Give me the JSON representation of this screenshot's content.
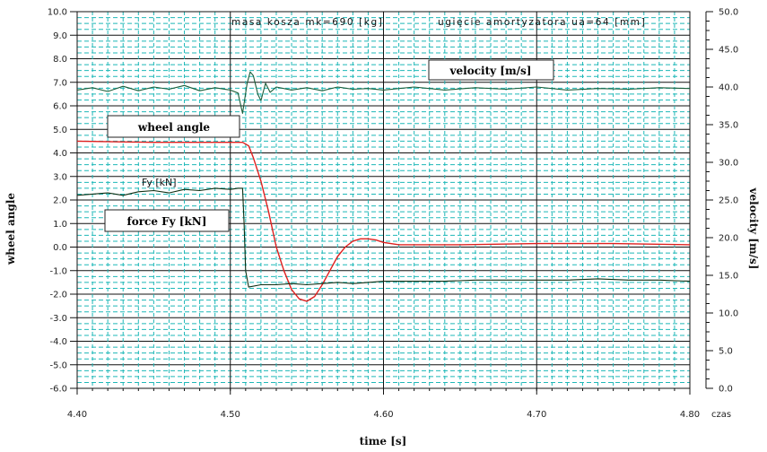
{
  "header": {
    "mass_text": "masa kosza   mk=690  [kg]",
    "spring_text": "ugięcie amortyzatora  ua=64  [mm]"
  },
  "chart_data": {
    "type": "line",
    "xlabel": "time [s]",
    "x_unit_label": "czas",
    "ylabel_left": "wheel angle",
    "ylabel_right": "velocity [m/s]",
    "xlim": [
      4.4,
      4.8
    ],
    "ylim_left": [
      -6.0,
      10.0
    ],
    "ylim_right": [
      0.0,
      50.0
    ],
    "x_ticks": [
      "4.40",
      "4.50",
      "4.60",
      "4.70",
      "4.80"
    ],
    "y_ticks_left": [
      "10.0",
      "9.0",
      "8.0",
      "7.0",
      "6.0",
      "5.0",
      "4.0",
      "3.0",
      "2.0",
      "1.0",
      "0.0",
      "-1.0",
      "-2.0",
      "-3.0",
      "-4.0",
      "-5.0",
      "-6.0"
    ],
    "y_ticks_right": [
      "50.0",
      "45.0",
      "40.0",
      "35.0",
      "30.0",
      "25.0",
      "20.0",
      "15.0",
      "10.0",
      "5.0",
      "0.0"
    ],
    "grid": true,
    "colors": {
      "wheel_angle": "#e0201f",
      "force": "#0e2e12",
      "velocity": "#1b5e3a",
      "grid": "#1fb8b8",
      "velocity_label": "#2e8b57"
    },
    "legend_labels": {
      "velocity": "velocity [m/s]",
      "wheel_angle": "wheel angle",
      "force": "force Fy [kN]",
      "force_annotation": "Fy  [kN]"
    },
    "series": [
      {
        "key": "wheel_angle",
        "axis": "left",
        "x": [
          4.4,
          4.45,
          4.5,
          4.508,
          4.512,
          4.515,
          4.52,
          4.525,
          4.53,
          4.535,
          4.54,
          4.545,
          4.55,
          4.555,
          4.56,
          4.565,
          4.57,
          4.575,
          4.58,
          4.585,
          4.59,
          4.595,
          4.6,
          4.61,
          4.62,
          4.65,
          4.7,
          4.75,
          4.8
        ],
        "y": [
          4.5,
          4.45,
          4.45,
          4.45,
          4.3,
          3.8,
          2.8,
          1.5,
          0.0,
          -1.0,
          -1.8,
          -2.2,
          -2.3,
          -2.1,
          -1.6,
          -1.0,
          -0.4,
          0.0,
          0.25,
          0.35,
          0.35,
          0.3,
          0.2,
          0.1,
          0.1,
          0.1,
          0.15,
          0.15,
          0.1
        ]
      },
      {
        "key": "force",
        "axis": "left",
        "x": [
          4.4,
          4.41,
          4.42,
          4.43,
          4.44,
          4.45,
          4.46,
          4.47,
          4.48,
          4.49,
          4.5,
          4.505,
          4.508,
          4.509,
          4.51,
          4.512,
          4.52,
          4.53,
          4.54,
          4.55,
          4.56,
          4.57,
          4.58,
          4.59,
          4.6,
          4.62,
          4.64,
          4.66,
          4.68,
          4.7,
          4.72,
          4.74,
          4.76,
          4.78,
          4.8
        ],
        "y": [
          2.2,
          2.25,
          2.3,
          2.2,
          2.35,
          2.4,
          2.3,
          2.45,
          2.4,
          2.5,
          2.45,
          2.5,
          2.5,
          1.0,
          -1.0,
          -1.7,
          -1.6,
          -1.6,
          -1.55,
          -1.6,
          -1.55,
          -1.5,
          -1.55,
          -1.5,
          -1.45,
          -1.45,
          -1.45,
          -1.4,
          -1.4,
          -1.4,
          -1.4,
          -1.35,
          -1.4,
          -1.4,
          -1.45
        ]
      },
      {
        "key": "velocity",
        "axis": "right",
        "x": [
          4.4,
          4.41,
          4.42,
          4.43,
          4.44,
          4.45,
          4.46,
          4.47,
          4.48,
          4.49,
          4.5,
          4.505,
          4.508,
          4.511,
          4.513,
          4.515,
          4.518,
          4.52,
          4.523,
          4.526,
          4.53,
          4.54,
          4.55,
          4.56,
          4.57,
          4.58,
          4.59,
          4.6,
          4.62,
          4.64,
          4.66,
          4.68,
          4.7,
          4.72,
          4.74,
          4.76,
          4.78,
          4.8
        ],
        "y": [
          39.6,
          39.9,
          39.4,
          40.1,
          39.5,
          40.0,
          39.7,
          40.2,
          39.5,
          39.9,
          39.6,
          39.2,
          36.5,
          40.5,
          42.0,
          41.5,
          39.0,
          38.2,
          40.5,
          39.3,
          40.0,
          39.6,
          39.9,
          39.5,
          40.0,
          39.7,
          39.8,
          39.6,
          40.0,
          39.6,
          39.9,
          39.7,
          40.0,
          39.6,
          39.8,
          39.7,
          39.9,
          39.8
        ]
      }
    ]
  }
}
